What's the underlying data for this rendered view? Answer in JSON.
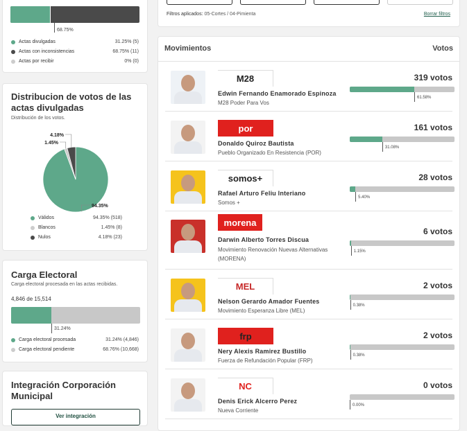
{
  "actas": {
    "bar_divulgadas_pct": 31.25,
    "bar_label": "68.75%",
    "legend": [
      {
        "label": "Actas divulgadas",
        "value": "31.25% (5)",
        "color": "#5ea88a"
      },
      {
        "label": "Actas con inconsistencias",
        "value": "68.75% (11)",
        "color": "#4a4a4a"
      },
      {
        "label": "Actas por recibir",
        "value": "0% (0)",
        "color": "#cccccc"
      }
    ]
  },
  "distribucion": {
    "title": "Distribucion de votos de las actas divulgadas",
    "subtitle": "Distribución de los votos.",
    "chart_data": {
      "type": "pie",
      "slices": [
        {
          "name": "Válidos",
          "value": 94.35,
          "count": 518,
          "color": "#5ea88a",
          "label": "94.35%"
        },
        {
          "name": "Blancos",
          "value": 1.45,
          "count": 8,
          "color": "#cccccc",
          "label": "1.45%"
        },
        {
          "name": "Nulos",
          "value": 4.18,
          "count": 23,
          "color": "#4a4a4a",
          "label": "4.18%"
        }
      ]
    },
    "legend": [
      {
        "label": "Válidos",
        "value": "94.35% (518)"
      },
      {
        "label": "Blancos",
        "value": "1.45% (8)"
      },
      {
        "label": "Nulos",
        "value": "4.18% (23)"
      }
    ]
  },
  "carga": {
    "title": "Carga Electoral",
    "subtitle": "Carga electoral procesada en las actas recibidas.",
    "count": "4,846 de 15,514",
    "pct": 31.24,
    "bar_label": "31.24%",
    "legend": [
      {
        "label": "Carga electoral procesada",
        "value": "31.24% (4,846)",
        "color": "#5ea88a"
      },
      {
        "label": "Carga electoral pendiente",
        "value": "68.76% (10,668)",
        "color": "#cccccc"
      }
    ]
  },
  "integracion": {
    "title": "Integración Corporación Municipal",
    "button": "Ver integración"
  },
  "filtros": {
    "label": "Filtros aplicados:",
    "value": "05-Cortes / 04-Pimienta",
    "clear": "Borrar filtros"
  },
  "movimientos": {
    "header": "Movimientos",
    "votes_header": "Votos",
    "rows": [
      {
        "logo": "M28",
        "logo_bg": "#ffffff",
        "logo_fg": "#222",
        "photo_bg": "#eef2f6",
        "name": "Edwin Fernando Enamorado Espinoza",
        "party": "M28 Poder Para Vos",
        "votes": "319 votos",
        "pct": 61.58,
        "pct_label": "61.58%"
      },
      {
        "logo": "por",
        "logo_bg": "#e0211e",
        "logo_fg": "#fff",
        "photo_bg": "#f3f3f3",
        "name": "Donaldo Quiroz Bautista",
        "party": "Pueblo Organizado En Resistencia (POR)",
        "votes": "161 votos",
        "pct": 31.08,
        "pct_label": "31.08%"
      },
      {
        "logo": "somos+",
        "logo_bg": "#ffffff",
        "logo_fg": "#222",
        "photo_bg": "#f5c31c",
        "name": "Rafael Arturo Feliu Interiano",
        "party": "Somos +",
        "votes": "28 votos",
        "pct": 5.4,
        "pct_label": "5.40%"
      },
      {
        "logo": "morena",
        "logo_bg": "#e0211e",
        "logo_fg": "#fff",
        "photo_bg": "#c9302a",
        "name": "Darwin Alberto Torres Discua",
        "party": "Movimiento Renovación Nuevas Alternativas (MORENA)",
        "votes": "6 votos",
        "pct": 1.15,
        "pct_label": "1.15%"
      },
      {
        "logo": "MEL",
        "logo_bg": "#ffffff",
        "logo_fg": "#c62828",
        "photo_bg": "#f5c31c",
        "name": "Nelson Gerardo Amador Fuentes",
        "party": "Movimiento Esperanza Libre (MEL)",
        "votes": "2 votos",
        "pct": 0.38,
        "pct_label": "0.38%"
      },
      {
        "logo": "frp",
        "logo_bg": "#e0211e",
        "logo_fg": "#222",
        "photo_bg": "#f3f3f3",
        "name": "Nery Alexis Ramirez Bustillo",
        "party": "Fuerza de Refundación Popular (FRP)",
        "votes": "2 votos",
        "pct": 0.38,
        "pct_label": "0.38%"
      },
      {
        "logo": "NC",
        "logo_bg": "#ffffff",
        "logo_fg": "#e0211e",
        "photo_bg": "#f3f3f3",
        "name": "Denis Erick Alcerro Perez",
        "party": "Nueva Corriente",
        "votes": "0 votos",
        "pct": 0.0,
        "pct_label": "0.00%"
      }
    ]
  }
}
